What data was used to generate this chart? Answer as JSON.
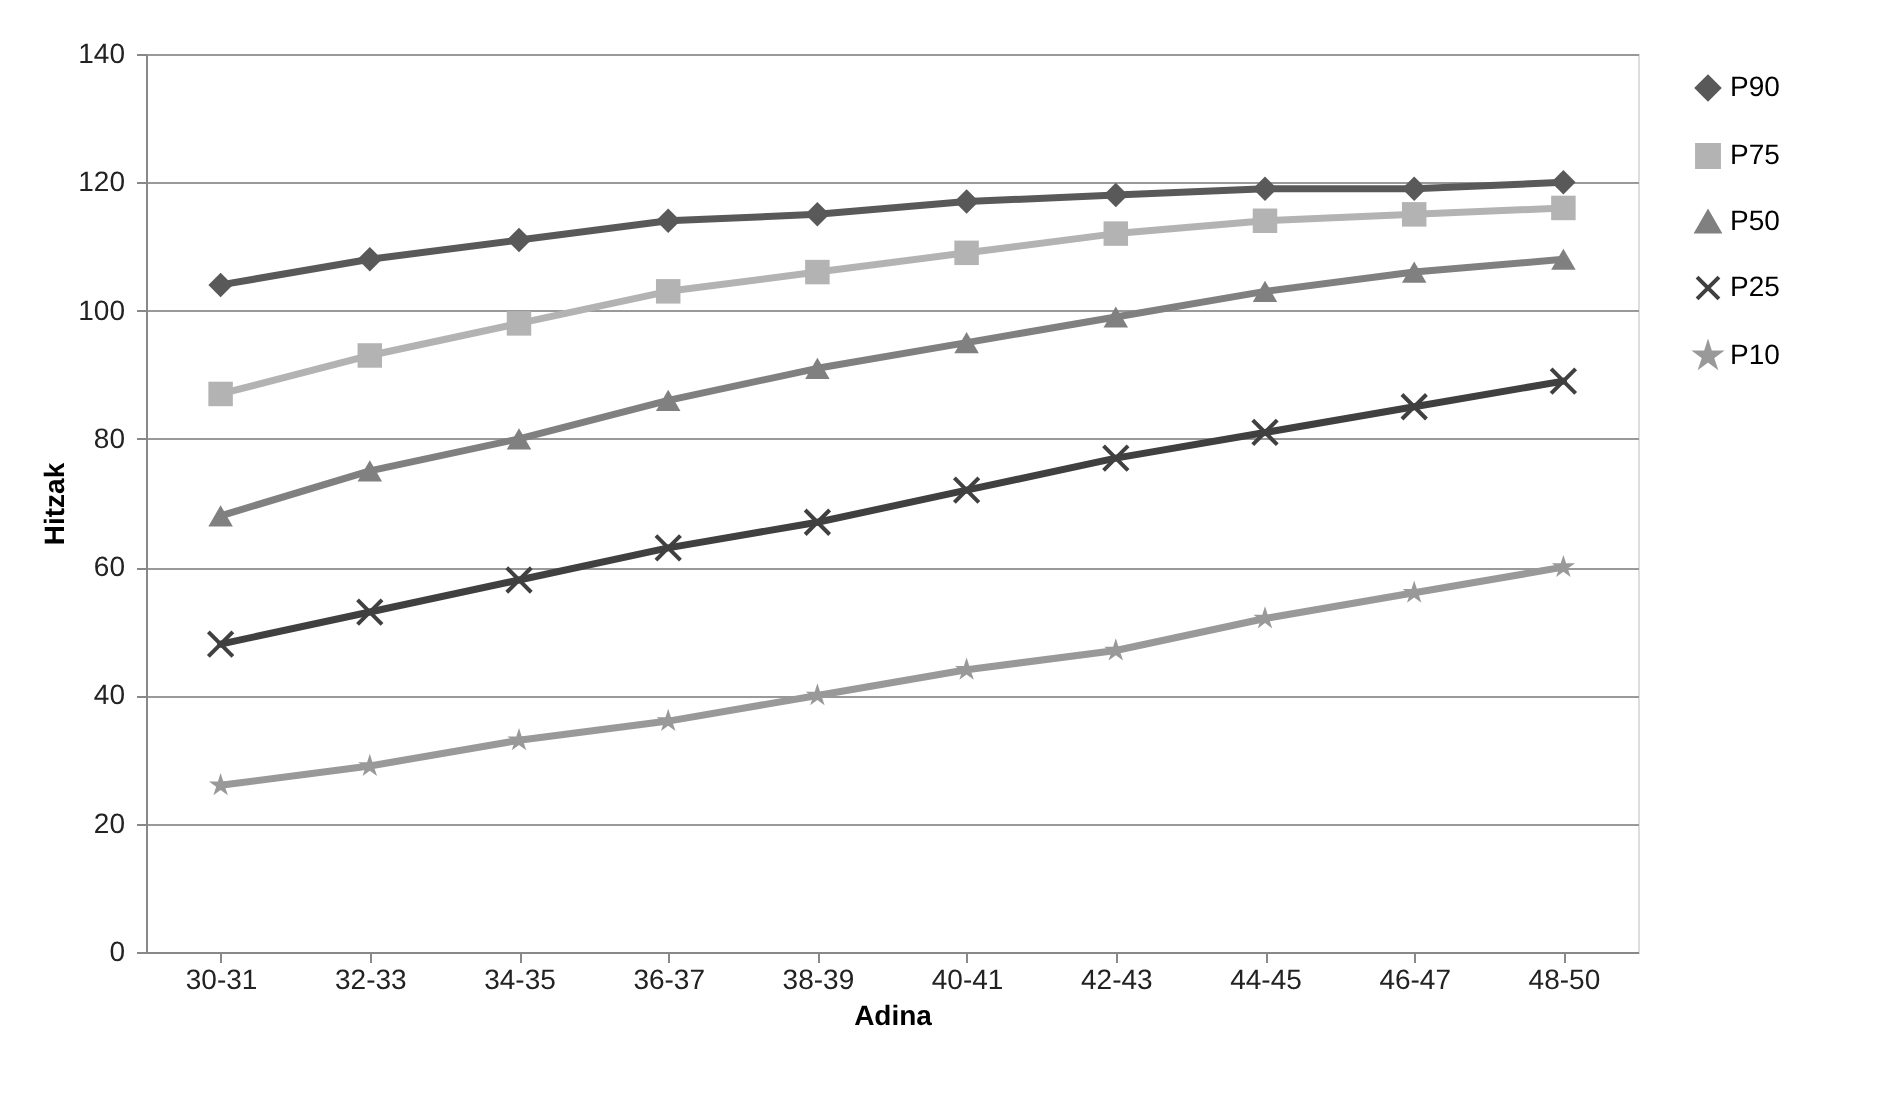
{
  "chart_data": {
    "type": "line",
    "xlabel": "Adina",
    "ylabel": "Hitzak",
    "categories": [
      "30-31",
      "32-33",
      "34-35",
      "36-37",
      "38-39",
      "40-41",
      "42-43",
      "44-45",
      "46-47",
      "48-50"
    ],
    "ylim": [
      0,
      140
    ],
    "yticks": [
      0,
      20,
      40,
      60,
      80,
      100,
      120,
      140
    ],
    "grid": "y",
    "legend": "right",
    "line_style": "solid",
    "series": [
      {
        "name": "P90",
        "color": "#595959",
        "marker": "diamond",
        "values": [
          104,
          108,
          111,
          114,
          115,
          117,
          118,
          119,
          119,
          120
        ]
      },
      {
        "name": "P75",
        "color": "#b3b3b3",
        "marker": "square",
        "values": [
          87,
          93,
          98,
          103,
          106,
          109,
          112,
          114,
          115,
          116
        ]
      },
      {
        "name": "P50",
        "color": "#808080",
        "marker": "triangle",
        "values": [
          68,
          75,
          80,
          86,
          91,
          95,
          99,
          103,
          106,
          108
        ]
      },
      {
        "name": "P25",
        "color": "#404040",
        "marker": "cross",
        "values": [
          48,
          53,
          58,
          63,
          67,
          72,
          77,
          81,
          85,
          89
        ]
      },
      {
        "name": "P10",
        "color": "#999999",
        "marker": "star",
        "values": [
          26,
          29,
          33,
          36,
          40,
          44,
          47,
          52,
          56,
          60
        ]
      }
    ]
  }
}
